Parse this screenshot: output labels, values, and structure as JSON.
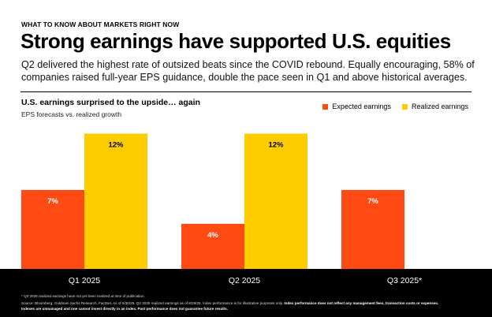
{
  "header": {
    "eyebrow": "WHAT TO KNOW ABOUT MARKETS RIGHT NOW",
    "title": "Strong earnings have supported U.S. equities",
    "subtitle": "Q2 delivered the highest rate of outsized beats since the COVID rebound. Equally encouraging, 58% of companies raised full-year EPS guidance, double the pace seen in Q1 and above historical averages."
  },
  "colors": {
    "expected": "#ff4a14",
    "realized": "#ffcc00"
  },
  "chart_data": {
    "type": "bar",
    "title": "U.S. earnings surprised to the upside… again",
    "subtitle": "EPS forecasts vs. realized growth",
    "categories": [
      "Q1 2025",
      "Q2 2025",
      "Q3 2025*"
    ],
    "series": [
      {
        "name": "Expected earnings",
        "values": [
          7,
          4,
          7
        ],
        "labels": [
          "7%",
          "4%",
          "7%"
        ]
      },
      {
        "name": "Realized earnings",
        "values": [
          12,
          12,
          null
        ],
        "labels": [
          "12%",
          "12%",
          ""
        ]
      }
    ],
    "ylim": [
      0,
      12.8
    ],
    "legend_position": "top-right",
    "grid": false
  },
  "footer": {
    "note1": "* Q3 2025 realized earnings have not yet been realized at time of publication.",
    "source": "Source: Bloomberg, Goldman Sachs Research, FactSet. As of 9/30/25. Q2 2025 realized earnings as of 8/29/25. Index performance is for illustrative purposes only.",
    "disclaimer_a": "Index performance does not reflect any management fees, transaction costs or expenses.",
    "disclaimer_b": "Indexes are unmanaged and one cannot invest directly in an index. Past performance does not guarantee future results."
  }
}
